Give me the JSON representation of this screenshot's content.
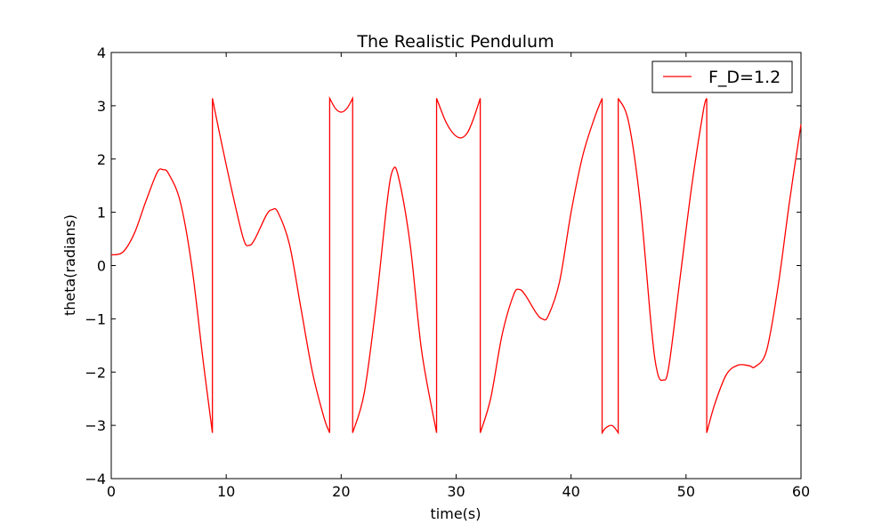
{
  "chart_data": {
    "type": "line",
    "title": "The Realistic Pendulum",
    "xlabel": "time(s)",
    "ylabel": "theta(radians)",
    "xlim": [
      0,
      60
    ],
    "ylim": [
      -4,
      4
    ],
    "x_ticks": [
      0,
      10,
      20,
      30,
      40,
      50,
      60
    ],
    "y_ticks": [
      -4,
      -3,
      -2,
      -1,
      0,
      1,
      2,
      3,
      4
    ],
    "x_tick_labels": [
      "0",
      "10",
      "20",
      "30",
      "40",
      "50",
      "60"
    ],
    "y_tick_labels": [
      "−4",
      "−3",
      "−2",
      "−1",
      "0",
      "1",
      "2",
      "3",
      "4"
    ],
    "grid": false,
    "legend_position": "top-right",
    "series": [
      {
        "name": "F_D=1.2",
        "color": "#ff0000",
        "points": [
          [
            0,
            0.2
          ],
          [
            1,
            0.25
          ],
          [
            2,
            0.6
          ],
          [
            3,
            1.2
          ],
          [
            4,
            1.75
          ],
          [
            4.5,
            1.8
          ],
          [
            5,
            1.72
          ],
          [
            6,
            1.2
          ],
          [
            7,
            0
          ],
          [
            8,
            -1.8
          ],
          [
            8.8,
            -3.14
          ],
          [
            8.8,
            3.14
          ],
          [
            9.5,
            2.4
          ],
          [
            10.5,
            1.4
          ],
          [
            11.5,
            0.5
          ],
          [
            12,
            0.38
          ],
          [
            12.5,
            0.5
          ],
          [
            13.5,
            0.95
          ],
          [
            14,
            1.05
          ],
          [
            14.5,
            1.0
          ],
          [
            15.5,
            0.4
          ],
          [
            16.5,
            -0.8
          ],
          [
            17.5,
            -2.0
          ],
          [
            18.5,
            -2.85
          ],
          [
            19,
            -3.14
          ],
          [
            19,
            3.14
          ],
          [
            19.5,
            2.95
          ],
          [
            20,
            2.88
          ],
          [
            20.5,
            2.95
          ],
          [
            21,
            3.14
          ],
          [
            21,
            -3.14
          ],
          [
            22,
            -2.4
          ],
          [
            23,
            -0.8
          ],
          [
            24,
            1.2
          ],
          [
            24.5,
            1.8
          ],
          [
            25,
            1.65
          ],
          [
            26,
            0.4
          ],
          [
            27,
            -1.6
          ],
          [
            28.3,
            -3.14
          ],
          [
            28.3,
            3.14
          ],
          [
            29,
            2.75
          ],
          [
            29.5,
            2.55
          ],
          [
            30,
            2.43
          ],
          [
            30.5,
            2.4
          ],
          [
            31,
            2.5
          ],
          [
            31.5,
            2.75
          ],
          [
            32.1,
            3.14
          ],
          [
            32.1,
            -3.14
          ],
          [
            33,
            -2.5
          ],
          [
            34,
            -1.3
          ],
          [
            35,
            -0.55
          ],
          [
            35.5,
            -0.45
          ],
          [
            36,
            -0.55
          ],
          [
            37,
            -0.9
          ],
          [
            37.5,
            -1.0
          ],
          [
            38,
            -0.95
          ],
          [
            39,
            -0.3
          ],
          [
            40,
            1.0
          ],
          [
            41,
            2.05
          ],
          [
            42,
            2.75
          ],
          [
            42.7,
            3.14
          ],
          [
            42.7,
            -3.14
          ],
          [
            43,
            -3.05
          ],
          [
            43.5,
            -3.0
          ],
          [
            43.8,
            -3.05
          ],
          [
            44.1,
            -3.14
          ],
          [
            44.1,
            3.14
          ],
          [
            45,
            2.7
          ],
          [
            46,
            1.2
          ],
          [
            47,
            -1.2
          ],
          [
            47.5,
            -2.0
          ],
          [
            48,
            -2.15
          ],
          [
            48.5,
            -1.9
          ],
          [
            49.5,
            -0.2
          ],
          [
            50.5,
            1.5
          ],
          [
            51.5,
            2.9
          ],
          [
            51.8,
            3.14
          ],
          [
            51.8,
            -3.14
          ],
          [
            52.5,
            -2.6
          ],
          [
            53.5,
            -2.05
          ],
          [
            54.5,
            -1.87
          ],
          [
            55.5,
            -1.88
          ],
          [
            56,
            -1.9
          ],
          [
            57,
            -1.6
          ],
          [
            58,
            -0.4
          ],
          [
            59,
            1.2
          ],
          [
            60,
            2.65
          ]
        ]
      }
    ]
  }
}
